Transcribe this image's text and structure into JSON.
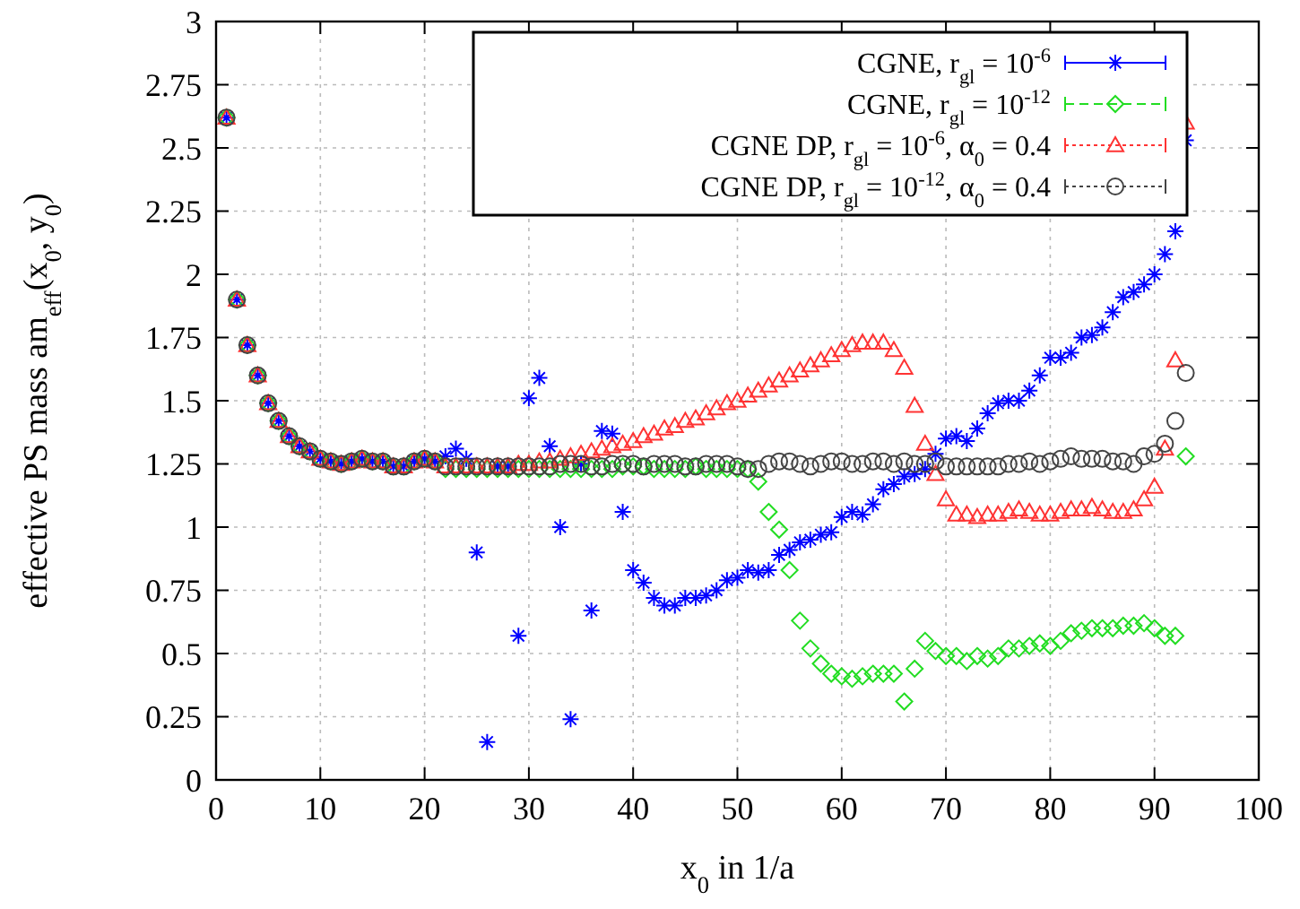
{
  "chart_data": {
    "type": "scatter",
    "xlabel": "x$_{0}$ in 1/a",
    "ylabel": "effective PS mass am$_{eff}$(x$_{0}$, y$_{0}$)",
    "x": [
      1,
      2,
      3,
      4,
      5,
      6,
      7,
      8,
      9,
      10,
      11,
      12,
      13,
      14,
      15,
      16,
      17,
      18,
      19,
      20,
      21,
      22,
      23,
      24,
      25,
      26,
      27,
      28,
      29,
      30,
      31,
      32,
      33,
      34,
      35,
      36,
      37,
      38,
      39,
      40,
      41,
      42,
      43,
      44,
      45,
      46,
      47,
      48,
      49,
      50,
      51,
      52,
      53,
      54,
      55,
      56,
      57,
      58,
      59,
      60,
      61,
      62,
      63,
      64,
      65,
      66,
      67,
      68,
      69,
      70,
      71,
      72,
      73,
      74,
      75,
      76,
      77,
      78,
      79,
      80,
      81,
      82,
      83,
      84,
      85,
      86,
      87,
      88,
      89,
      90,
      91,
      92,
      93
    ],
    "xlim": [
      0,
      100
    ],
    "xticks": [
      0,
      10,
      20,
      30,
      40,
      50,
      60,
      70,
      80,
      90,
      100
    ],
    "ylim": [
      0,
      3
    ],
    "yticks": [
      0,
      0.25,
      0.5,
      0.75,
      1,
      1.25,
      1.5,
      1.75,
      2,
      2.25,
      2.5,
      2.75,
      3
    ],
    "grid": true,
    "legend": "top right",
    "series": [
      {
        "name": "CGNE, r$_{gl}$ = 10$^{-6}$",
        "color": "#0000ff",
        "marker": "cross",
        "line_style": "solid",
        "values": [
          2.62,
          1.9,
          1.72,
          1.6,
          1.49,
          1.42,
          1.36,
          1.32,
          1.3,
          1.27,
          1.26,
          1.25,
          1.26,
          1.27,
          1.26,
          1.26,
          1.24,
          1.24,
          1.26,
          1.27,
          1.26,
          1.28,
          1.31,
          1.27,
          0.9,
          0.15,
          1.24,
          1.24,
          0.57,
          1.51,
          1.59,
          1.32,
          1.0,
          0.24,
          1.25,
          0.67,
          1.38,
          1.37,
          1.06,
          0.83,
          0.78,
          0.72,
          0.69,
          0.69,
          0.72,
          0.72,
          0.73,
          0.75,
          0.79,
          0.8,
          0.83,
          0.82,
          0.83,
          0.89,
          0.91,
          0.94,
          0.95,
          0.97,
          0.98,
          1.04,
          1.06,
          1.05,
          1.09,
          1.15,
          1.17,
          1.2,
          1.21,
          1.23,
          1.29,
          1.35,
          1.36,
          1.34,
          1.39,
          1.45,
          1.49,
          1.5,
          1.5,
          1.54,
          1.6,
          1.67,
          1.67,
          1.69,
          1.75,
          1.76,
          1.79,
          1.85,
          1.91,
          1.93,
          1.96,
          2.0,
          2.08,
          2.17,
          2.53
        ]
      },
      {
        "name": "CGNE, r$_{gl}$ = 10$^{-12}$",
        "color": "#22dd22",
        "marker": "diamond",
        "line_style": "dashed",
        "values": [
          2.62,
          1.9,
          1.72,
          1.6,
          1.49,
          1.42,
          1.36,
          1.32,
          1.3,
          1.27,
          1.26,
          1.25,
          1.26,
          1.27,
          1.26,
          1.26,
          1.24,
          1.24,
          1.26,
          1.27,
          1.26,
          1.23,
          1.23,
          1.23,
          1.23,
          1.23,
          1.23,
          1.23,
          1.23,
          1.23,
          1.23,
          1.23,
          1.23,
          1.23,
          1.23,
          1.23,
          1.23,
          1.23,
          1.24,
          1.24,
          1.24,
          1.23,
          1.23,
          1.23,
          1.23,
          1.24,
          1.23,
          1.23,
          1.23,
          1.23,
          1.23,
          1.18,
          1.06,
          0.99,
          0.83,
          0.63,
          0.52,
          0.46,
          0.42,
          0.41,
          0.4,
          0.41,
          0.42,
          0.42,
          0.42,
          0.31,
          0.44,
          0.55,
          0.51,
          0.49,
          0.49,
          0.47,
          0.49,
          0.48,
          0.49,
          0.52,
          0.52,
          0.53,
          0.54,
          0.53,
          0.55,
          0.58,
          0.59,
          0.6,
          0.6,
          0.6,
          0.61,
          0.61,
          0.62,
          0.6,
          0.57,
          0.57,
          1.28
        ]
      },
      {
        "name": "CGNE DP, r$_{gl}$ = 10$^{-6}$, α$_{0}$ = 0.4",
        "color": "#ff3333",
        "marker": "triangle",
        "line_style": "dotted",
        "values": [
          2.62,
          1.9,
          1.72,
          1.6,
          1.49,
          1.42,
          1.36,
          1.32,
          1.3,
          1.27,
          1.26,
          1.25,
          1.26,
          1.27,
          1.26,
          1.26,
          1.24,
          1.24,
          1.26,
          1.27,
          1.26,
          1.24,
          1.24,
          1.24,
          1.24,
          1.24,
          1.24,
          1.24,
          1.25,
          1.25,
          1.26,
          1.26,
          1.27,
          1.28,
          1.29,
          1.3,
          1.31,
          1.32,
          1.33,
          1.34,
          1.36,
          1.37,
          1.39,
          1.4,
          1.42,
          1.43,
          1.45,
          1.47,
          1.49,
          1.5,
          1.52,
          1.54,
          1.56,
          1.58,
          1.6,
          1.62,
          1.64,
          1.66,
          1.68,
          1.7,
          1.72,
          1.73,
          1.73,
          1.73,
          1.7,
          1.63,
          1.48,
          1.33,
          1.21,
          1.11,
          1.05,
          1.05,
          1.04,
          1.05,
          1.05,
          1.06,
          1.07,
          1.06,
          1.05,
          1.05,
          1.06,
          1.07,
          1.07,
          1.08,
          1.07,
          1.06,
          1.06,
          1.07,
          1.11,
          1.16,
          1.31,
          1.66,
          2.6
        ]
      },
      {
        "name": "CGNE DP, r$_{gl}$ = 10$^{-12}$, α$_{0}$ = 0.4",
        "color": "#444444",
        "marker": "circle",
        "line_style": "dotted",
        "values": [
          2.62,
          1.9,
          1.72,
          1.6,
          1.49,
          1.42,
          1.36,
          1.32,
          1.3,
          1.27,
          1.26,
          1.25,
          1.26,
          1.27,
          1.26,
          1.26,
          1.24,
          1.24,
          1.26,
          1.27,
          1.26,
          1.24,
          1.24,
          1.24,
          1.24,
          1.24,
          1.24,
          1.24,
          1.24,
          1.24,
          1.24,
          1.24,
          1.25,
          1.25,
          1.25,
          1.24,
          1.24,
          1.25,
          1.25,
          1.25,
          1.24,
          1.25,
          1.25,
          1.25,
          1.24,
          1.24,
          1.25,
          1.25,
          1.25,
          1.24,
          1.23,
          1.23,
          1.25,
          1.26,
          1.26,
          1.25,
          1.24,
          1.25,
          1.26,
          1.26,
          1.25,
          1.25,
          1.26,
          1.26,
          1.25,
          1.26,
          1.25,
          1.25,
          1.26,
          1.24,
          1.24,
          1.24,
          1.24,
          1.24,
          1.24,
          1.25,
          1.25,
          1.26,
          1.25,
          1.26,
          1.27,
          1.28,
          1.27,
          1.27,
          1.27,
          1.26,
          1.26,
          1.25,
          1.28,
          1.29,
          1.33,
          1.42,
          1.61
        ]
      }
    ]
  }
}
